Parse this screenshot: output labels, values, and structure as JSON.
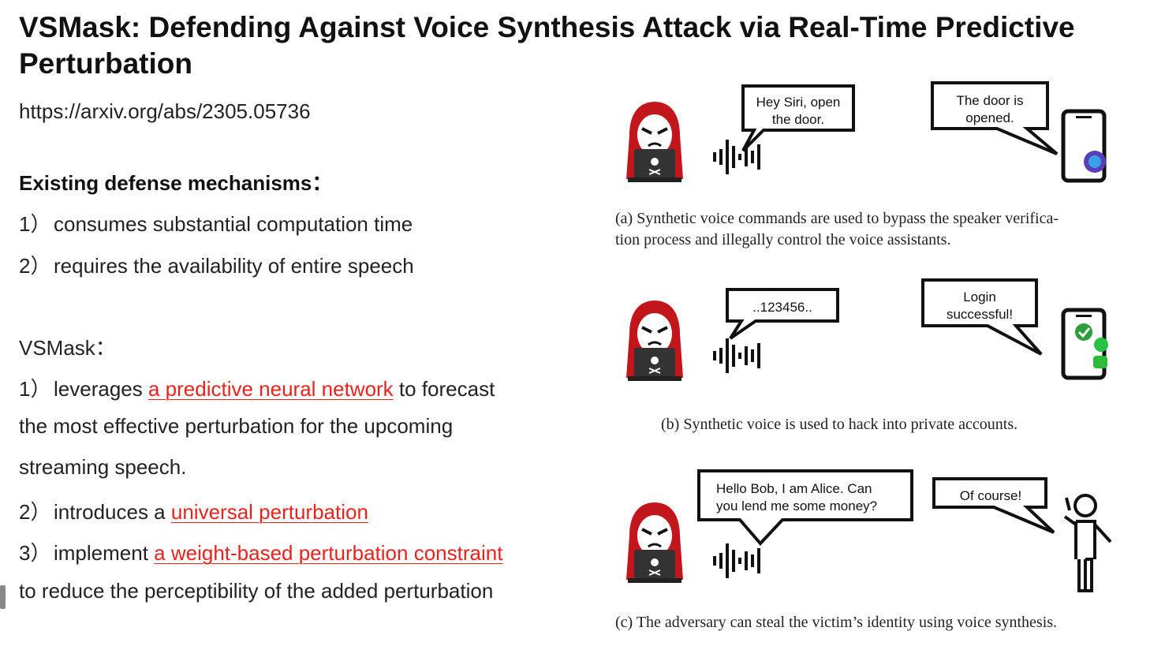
{
  "title": "VSMask: Defending Against Voice Synthesis Attack via Real-Time Predictive Perturbation",
  "url": "https://arxiv.org/abs/2305.05736",
  "existing": {
    "heading": "Existing defense mechanisms：",
    "items": [
      {
        "num": "1）",
        "text": "consumes substantial computation time"
      },
      {
        "num": "2）",
        "text": "requires the availability of entire speech"
      }
    ]
  },
  "vsmask": {
    "heading": "VSMask：",
    "item1": {
      "num": "1）",
      "pre": "leverages ",
      "hl": "a predictive neural network",
      "post": " to forecast"
    },
    "item1_cont1": "the most effective perturbation for the upcoming",
    "item1_cont2": "streaming speech.",
    "item2": {
      "num": "2）",
      "pre": "introduces a ",
      "hl": "universal perturbation"
    },
    "item3": {
      "num": "3）",
      "pre": "implement ",
      "hl": "a weight-based perturbation constraint"
    },
    "item3_cont": "to reduce the perceptibility of the added perturbation"
  },
  "figure": {
    "a": {
      "bubble_left": [
        "Hey Siri, open",
        "the door."
      ],
      "bubble_right": [
        "The door is",
        "opened."
      ],
      "caption": [
        "(a)  Synthetic voice commands are used to bypass the speaker verifica-",
        "tion process and illegally control the voice assistants."
      ]
    },
    "b": {
      "bubble_left": [
        "..123456.."
      ],
      "bubble_right": [
        "Login",
        "successful!"
      ],
      "caption": [
        "(b)  Synthetic voice is used to hack into private accounts."
      ]
    },
    "c": {
      "bubble_left": [
        "Hello Bob, I am Alice. Can",
        "you lend me some money?"
      ],
      "bubble_right": [
        "Of course!"
      ],
      "caption": [
        "(c)  The adversary can steal the victim’s identity using voice synthesis."
      ]
    }
  },
  "colors": {
    "highlight": "#e8231e",
    "hacker": "#c0161c"
  }
}
